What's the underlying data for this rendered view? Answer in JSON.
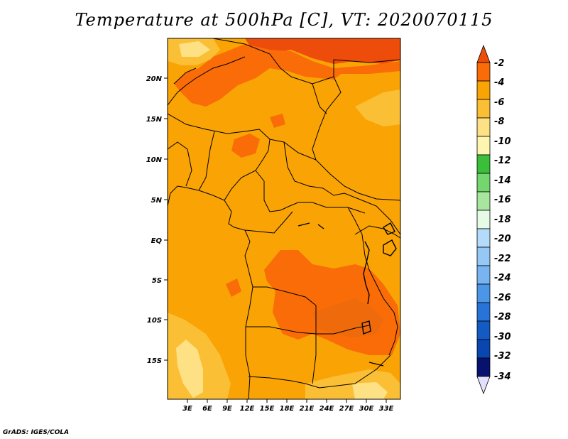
{
  "title": "Temperature at 500hPa [C], VT: 2020070115",
  "credit": "GrADS: IGES/COLA",
  "map": {
    "lat_ticks": [
      "20N",
      "15N",
      "10N",
      "5N",
      "EQ",
      "5S",
      "10S",
      "15S"
    ],
    "lon_ticks": [
      "3E",
      "6E",
      "9E",
      "12E",
      "15E",
      "18E",
      "21E",
      "24E",
      "27E",
      "30E",
      "33E"
    ]
  },
  "colorbar": {
    "labels": [
      "-2",
      "-4",
      "-6",
      "-8",
      "-10",
      "-12",
      "-14",
      "-16",
      "-18",
      "-20",
      "-22",
      "-24",
      "-26",
      "-28",
      "-30",
      "-32",
      "-34"
    ],
    "colors": [
      "#ee4c0a",
      "#f96c07",
      "#f9a304",
      "#fbbf36",
      "#fee185",
      "#fef6b0",
      "#3bbf3b",
      "#74d66e",
      "#a8e6a0",
      "#e6fbe6",
      "#b4dcfa",
      "#96c8f5",
      "#78b4f0",
      "#4b96e6",
      "#2873d7",
      "#145ac3",
      "#0a46af",
      "#07126e",
      "#e1e1fc"
    ]
  }
}
